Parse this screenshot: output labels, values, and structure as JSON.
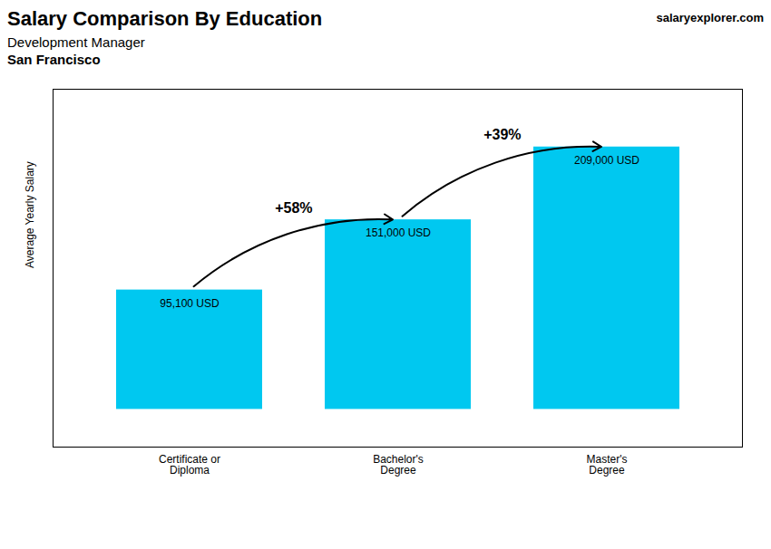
{
  "chart_data": {
    "type": "bar",
    "title": "Salary Comparison By Education",
    "subtitle": "Development Manager",
    "annotations": [
      "San Francisco",
      "salaryexplorer.com"
    ],
    "ylabel": "Average Yearly Salary",
    "categories": [
      "Certificate or\nDiploma",
      "Bachelor's\nDegree",
      "Master's\nDegree"
    ],
    "values": [
      95100,
      151000,
      209000
    ],
    "value_labels": [
      "95,100 USD",
      "151,000 USD",
      "209,000 USD"
    ],
    "change_labels": [
      "+58%",
      "+39%"
    ],
    "color": "#00c8f0",
    "ylim": [
      -30000,
      255000
    ],
    "data_labels": true,
    "tick_labels": "x",
    "grid": false
  }
}
